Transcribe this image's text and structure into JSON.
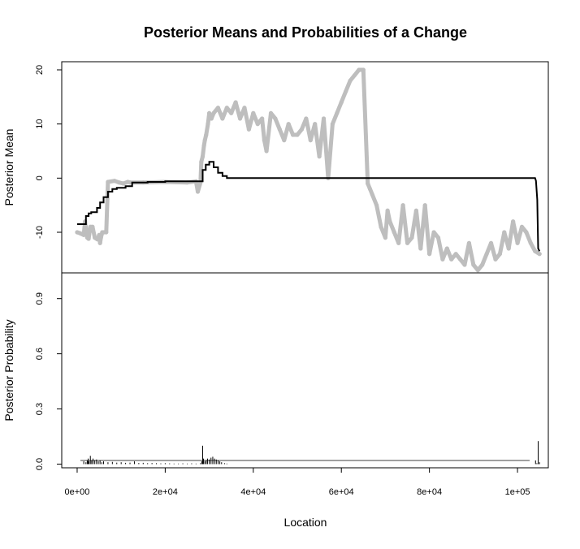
{
  "chart_data": {
    "type": "line",
    "title": "Posterior Means and Probabilities of a Change",
    "xlabel": "Location",
    "xlim": [
      -3500,
      107000
    ],
    "x_ticks": [
      0,
      20000,
      40000,
      60000,
      80000,
      100000
    ],
    "x_tick_labels": [
      "0e+00",
      "2e+04",
      "4e+04",
      "6e+04",
      "8e+04",
      "1e+05"
    ],
    "colors": {
      "observed": "#bebebe",
      "posterior": "#000000"
    },
    "panels": [
      {
        "name": "posterior-mean",
        "ylabel": "Posterior Mean",
        "ylim": [
          -17.5,
          21.5
        ],
        "y_ticks": [
          -10,
          0,
          10,
          20
        ],
        "y_tick_labels": [
          "-10",
          "0",
          "10",
          "20"
        ],
        "series": [
          {
            "type": "scatter",
            "x": [
              0,
              700,
              1500,
              1800,
              2300,
              2600,
              3000,
              3500,
              4000,
              4600,
              5000,
              5200,
              5400,
              5700,
              6100,
              6600,
              7000,
              8500,
              9500,
              10500,
              11500,
              12000,
              15000,
              20000,
              25000,
              27000,
              27400,
              28000,
              28200,
              28500,
              28800,
              29000,
              29300,
              29700,
              30000,
              30500,
              31000,
              32000,
              33000,
              34000,
              35000,
              36000,
              37000,
              38000,
              39000,
              40000,
              41000,
              42000,
              42500,
              43000,
              44000,
              45000,
              46000,
              47000,
              48000,
              49000,
              50000,
              51000,
              52000,
              53000,
              54000,
              55000,
              56000,
              57000,
              58000,
              59000,
              60000,
              61000,
              62000,
              63000,
              64000,
              65000,
              66000,
              66500,
              67000,
              68000,
              69000,
              70000,
              70500,
              71000,
              72000,
              73000,
              74000,
              75000,
              76000,
              77000,
              78000,
              79000,
              80000,
              81000,
              82000,
              83000,
              84000,
              85000,
              86000,
              87000,
              88000,
              89000,
              90000,
              91000,
              92000,
              93000,
              94000,
              95000,
              96000,
              97000,
              98000,
              99000,
              100000,
              101000,
              102000,
              103000,
              104000,
              105000
            ],
            "y": [
              -10,
              -10.2,
              -10.5,
              -8,
              -11,
              -11.2,
              -9,
              -9,
              -11,
              -11.3,
              -10.5,
              -12,
              -11,
              -10,
              -10,
              -10,
              -0.7,
              -0.5,
              -0.8,
              -1,
              -0.7,
              -0.8,
              -0.8,
              -0.7,
              -0.8,
              -0.6,
              -2.5,
              -0.8,
              3,
              4,
              6,
              7,
              8,
              10,
              12,
              11,
              12,
              13,
              11,
              13,
              12,
              14,
              11,
              13,
              9,
              12,
              10,
              11,
              7,
              5,
              12,
              11,
              9,
              7,
              10,
              8,
              8,
              9,
              11,
              7,
              10,
              4,
              11,
              0,
              10,
              12,
              14,
              16,
              18,
              19,
              20,
              20,
              -1,
              -2,
              -3,
              -5,
              -9,
              -11,
              -6,
              -8,
              -10,
              -12,
              -5,
              -12,
              -11,
              -6,
              -13,
              -5,
              -14,
              -10,
              -11,
              -15,
              -13,
              -15,
              -14,
              -15,
              -16,
              -12,
              -16,
              -17,
              -16,
              -14,
              -12,
              -15,
              -14,
              -10,
              -13,
              -8,
              -12,
              -9,
              -10,
              -12,
              -13.5,
              -14
            ]
          },
          {
            "type": "line",
            "x": [
              0,
              2000,
              2000,
              2600,
              2600,
              3200,
              3200,
              4500,
              4500,
              5200,
              5200,
              6000,
              6000,
              7000,
              7000,
              8000,
              8000,
              9000,
              9000,
              11000,
              11000,
              12500,
              12500,
              16000,
              16000,
              20000,
              20000,
              28500,
              28500,
              29200,
              29200,
              30000,
              30000,
              31000,
              31000,
              32000,
              32000,
              33000,
              33000,
              34000,
              34000,
              104000,
              104200,
              104500,
              104500,
              104700,
              104700,
              105000
            ],
            "y": [
              -8.5,
              -8.5,
              -7,
              -7,
              -6.5,
              -6.5,
              -6.3,
              -6.3,
              -5.5,
              -5.5,
              -4.5,
              -4.5,
              -3.5,
              -3.5,
              -2.5,
              -2.5,
              -2,
              -2,
              -1.8,
              -1.8,
              -1.5,
              -1.5,
              -0.8,
              -0.8,
              -0.7,
              -0.7,
              -0.6,
              -0.6,
              1.5,
              1.5,
              2.5,
              2.5,
              3,
              3,
              2,
              2,
              1,
              1,
              0.4,
              0.4,
              0,
              0,
              -0.5,
              -4,
              -4,
              -13,
              -13,
              -13.5
            ]
          }
        ]
      },
      {
        "name": "posterior-probability",
        "ylabel": "Posterior Probability",
        "ylim": [
          -0.02,
          1.04
        ],
        "y_ticks": [
          0.0,
          0.3,
          0.6,
          0.9
        ],
        "y_tick_labels": [
          "0.0",
          "0.3",
          "0.6",
          "0.9"
        ],
        "series": [
          {
            "type": "histogram",
            "x": [
              1500,
              2000,
              2300,
              2500,
              2700,
              3000,
              3300,
              3600,
              4000,
              4400,
              4800,
              5200,
              5600,
              6000,
              7000,
              8000,
              9000,
              10000,
              11000,
              12000,
              13000,
              14000,
              15000,
              16000,
              17000,
              18000,
              19000,
              20000,
              21000,
              22000,
              23000,
              24000,
              25000,
              26000,
              27000,
              28000,
              28300,
              28500,
              28700,
              29000,
              29300,
              29600,
              30000,
              30400,
              30800,
              31200,
              31600,
              32000,
              32400,
              32800,
              33500,
              34000,
              104100,
              104400,
              104700,
              105000
            ],
            "y": [
              0.015,
              0.01,
              0.02,
              0.03,
              0.015,
              0.045,
              0.02,
              0.03,
              0.02,
              0.025,
              0.015,
              0.02,
              0.01,
              0.015,
              0.01,
              0.012,
              0.008,
              0.01,
              0.007,
              0.008,
              0.015,
              0.006,
              0.007,
              0.005,
              0.006,
              0.005,
              0.004,
              0.005,
              0.004,
              0.003,
              0.003,
              0.004,
              0.003,
              0.004,
              0.003,
              0.005,
              0.015,
              0.1,
              0.03,
              0.015,
              0.02,
              0.03,
              0.025,
              0.035,
              0.04,
              0.03,
              0.025,
              0.02,
              0.015,
              0.01,
              0.005,
              0.003,
              0.02,
              0.005,
              0.125,
              0.01
            ]
          }
        ]
      }
    ]
  }
}
